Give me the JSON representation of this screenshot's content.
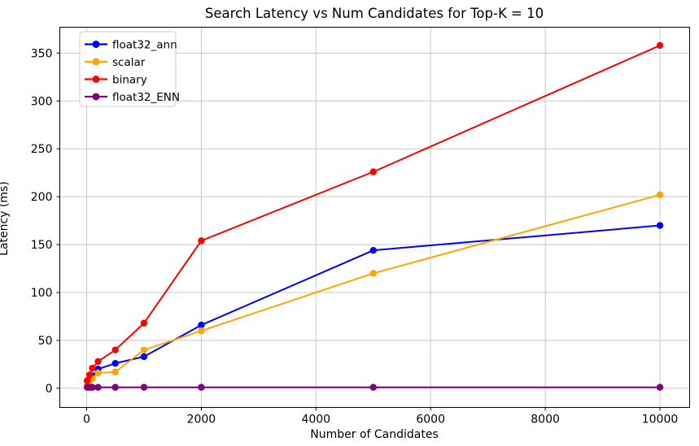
{
  "chart_data": {
    "type": "line",
    "title": "Search Latency vs Num Candidates for Top-K = 10",
    "xlabel": "Number of Candidates",
    "ylabel": "Latency (ms)",
    "x": [
      10,
      50,
      100,
      200,
      500,
      1000,
      2000,
      5000,
      10000
    ],
    "series": [
      {
        "name": "float32_ann",
        "color": "#0000ff",
        "values": [
          4,
          8,
          13,
          20,
          26,
          33,
          66,
          144,
          170
        ]
      },
      {
        "name": "scalar",
        "color": "#ffa500",
        "values": [
          4,
          7,
          10,
          16,
          17,
          40,
          60,
          120,
          202
        ]
      },
      {
        "name": "binary",
        "color": "#ff0000",
        "values": [
          8,
          14,
          21,
          28,
          40,
          68,
          154,
          226,
          358
        ]
      },
      {
        "name": "float32_ENN",
        "color": "#800080",
        "values": [
          1,
          1,
          1,
          1,
          1,
          1,
          1,
          1,
          1
        ]
      }
    ],
    "xticks": [
      0,
      2000,
      4000,
      6000,
      8000,
      10000
    ],
    "yticks": [
      0,
      50,
      100,
      150,
      200,
      250,
      300,
      350
    ],
    "xlim": [
      -468,
      10518
    ],
    "ylim": [
      -20,
      377
    ],
    "grid": true,
    "grid_color": "#c8c8c8",
    "background": "#ffffff",
    "legend_position": "upper left",
    "legend_border_color": "#cccccc"
  }
}
